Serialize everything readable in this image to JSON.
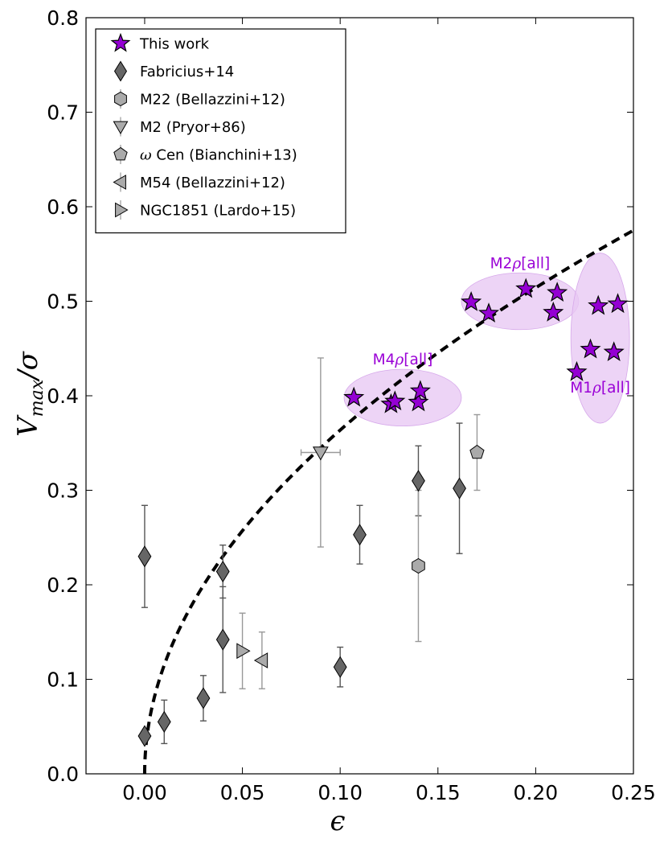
{
  "chart_data": {
    "type": "scatter",
    "xlabel": "ϵ",
    "ylabel_main": "V",
    "ylabel_sub": "max",
    "ylabel_tail": "/σ",
    "xlim": [
      -0.03,
      0.25
    ],
    "ylim": [
      0.0,
      0.8
    ],
    "xticks": [
      0.0,
      0.05,
      0.1,
      0.15,
      0.2,
      0.25
    ],
    "xtick_labels": [
      "0.00",
      "0.05",
      "0.10",
      "0.15",
      "0.20",
      "0.25"
    ],
    "yticks": [
      0.0,
      0.1,
      0.2,
      0.3,
      0.4,
      0.5,
      0.6,
      0.7,
      0.8
    ],
    "ytick_labels": [
      "0.0",
      "0.1",
      "0.2",
      "0.3",
      "0.4",
      "0.5",
      "0.6",
      "0.7",
      "0.8"
    ],
    "legend_position": "top-left",
    "series": [
      {
        "name": "This work",
        "marker": "star",
        "color": "#9400d3",
        "points": [
          {
            "x": 0.107,
            "y": 0.398
          },
          {
            "x": 0.126,
            "y": 0.391
          },
          {
            "x": 0.128,
            "y": 0.394
          },
          {
            "x": 0.14,
            "y": 0.393
          },
          {
            "x": 0.141,
            "y": 0.405
          },
          {
            "x": 0.167,
            "y": 0.499
          },
          {
            "x": 0.176,
            "y": 0.487
          },
          {
            "x": 0.195,
            "y": 0.513
          },
          {
            "x": 0.209,
            "y": 0.488
          },
          {
            "x": 0.211,
            "y": 0.509
          },
          {
            "x": 0.221,
            "y": 0.425
          },
          {
            "x": 0.228,
            "y": 0.449
          },
          {
            "x": 0.232,
            "y": 0.495
          },
          {
            "x": 0.24,
            "y": 0.446
          },
          {
            "x": 0.242,
            "y": 0.497
          }
        ]
      },
      {
        "name": "Fabricius+14",
        "marker": "diamond",
        "color": "#666666",
        "points": [
          {
            "x": 0.0,
            "y": 0.04,
            "ylo": 0.04,
            "yhi": 0.04
          },
          {
            "x": 0.0,
            "y": 0.23,
            "ylo": 0.176,
            "yhi": 0.284
          },
          {
            "x": 0.01,
            "y": 0.055,
            "ylo": 0.032,
            "yhi": 0.078
          },
          {
            "x": 0.03,
            "y": 0.08,
            "ylo": 0.056,
            "yhi": 0.104
          },
          {
            "x": 0.04,
            "y": 0.214,
            "ylo": 0.186,
            "yhi": 0.242
          },
          {
            "x": 0.04,
            "y": 0.142,
            "ylo": 0.086,
            "yhi": 0.198
          },
          {
            "x": 0.1,
            "y": 0.113,
            "ylo": 0.092,
            "yhi": 0.134
          },
          {
            "x": 0.11,
            "y": 0.253,
            "ylo": 0.222,
            "yhi": 0.284
          },
          {
            "x": 0.14,
            "y": 0.31,
            "ylo": 0.273,
            "yhi": 0.347
          },
          {
            "x": 0.161,
            "y": 0.302,
            "ylo": 0.233,
            "yhi": 0.371
          }
        ]
      },
      {
        "name": "M22 (Bellazzini+12)",
        "marker": "hexagon",
        "color": "#aaaaaa",
        "points": [
          {
            "x": 0.14,
            "y": 0.22,
            "ylo": 0.14,
            "yhi": 0.3
          }
        ]
      },
      {
        "name": "M2 (Pryor+86)",
        "marker": "triangle-down",
        "color": "#aaaaaa",
        "points": [
          {
            "x": 0.09,
            "y": 0.34,
            "ylo": 0.24,
            "yhi": 0.44,
            "xlo": 0.08,
            "xhi": 0.1
          }
        ]
      },
      {
        "name": "ω Cen (Bianchini+13)",
        "legend_symbol": "ω",
        "legend_rest": " Cen (Bianchini+13)",
        "marker": "pentagon",
        "color": "#aaaaaa",
        "points": [
          {
            "x": 0.17,
            "y": 0.34,
            "ylo": 0.3,
            "yhi": 0.38
          }
        ]
      },
      {
        "name": "M54 (Bellazzini+12)",
        "marker": "triangle-left",
        "color": "#aaaaaa",
        "points": [
          {
            "x": 0.06,
            "y": 0.12,
            "ylo": 0.09,
            "yhi": 0.15
          }
        ]
      },
      {
        "name": "NGC1851 (Lardo+15)",
        "marker": "triangle-right",
        "color": "#aaaaaa",
        "points": [
          {
            "x": 0.05,
            "y": 0.13,
            "ylo": 0.09,
            "yhi": 0.17
          }
        ]
      }
    ],
    "model_curve": {
      "style": "dashed",
      "color": "#000000",
      "function": "y = 1.15 * sqrt(x)"
    },
    "groups": [
      {
        "label_main": "M4",
        "label_rho": "ρ",
        "label_tail": "[all]",
        "cx": 0.132,
        "cy": 0.398,
        "rx": 0.03,
        "ry": 0.03
      },
      {
        "label_main": "M2",
        "label_rho": "ρ",
        "label_tail": "[all]",
        "cx": 0.192,
        "cy": 0.5,
        "rx": 0.03,
        "ry": 0.03
      },
      {
        "label_main": "M1",
        "label_rho": "ρ",
        "label_tail": "[all]",
        "cx": 0.233,
        "cy": 0.461,
        "rx": 0.015,
        "ry": 0.09
      }
    ]
  }
}
